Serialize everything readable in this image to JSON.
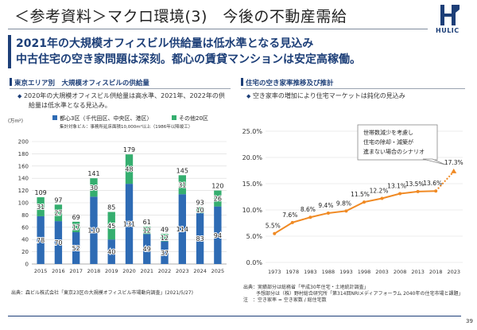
{
  "header": {
    "title": "＜参考資料＞マクロ環境(3)　今後の不動産需給",
    "logo_text": "HULIC",
    "headline_1": "2021年の大規模オフィスビル供給量は低水準となる見込み",
    "headline_2": "中古住宅の空き家問題は深刻。都心の賃貸マンションは安定高稼働。"
  },
  "left_panel": {
    "title": "東京エリア別　大規模オフィスビルの供給量",
    "bullet_1": "2020年の大規模オフィスビル供給量は高水準、2021年、2022年の供",
    "bullet_2": "給量は低水準となる見込み。",
    "unit": "(万m²)",
    "legend_1": "都心3区（千代田区、中央区、港区）",
    "legend_2": "その他20区",
    "legend_note": "集計対象ビル：事務所延床面積10,000m²以上（1986年以降竣工）",
    "source": "出典：森ビル株式会社「東京23区の大規模オフィスビル市場動向調査」(2021/5/27)"
  },
  "right_panel": {
    "title": "住宅の空き家率推移及び推計",
    "bullet_1": "空き家率の増加により住宅マーケットは鈍化の見込み",
    "callout_1": "世帯数減少を考慮し",
    "callout_2": "住宅の除却・減築が",
    "callout_3": "進まない場合のシナリオ",
    "source_1": "出典：実績部分は総務省「平成30年住宅・土地統計調査」",
    "source_2": "予想部分は（株）野村総合研究所「第314回NRIメディアフォーラム 2040年の住宅市場と課題」",
    "source_3": "注　：空き家率 = 空き家数 / 総住宅数"
  },
  "page_number": "39",
  "chart_data": [
    {
      "type": "bar",
      "stacked": true,
      "categories": [
        "2015",
        "2016",
        "2017",
        "2018",
        "2019",
        "2020",
        "2021",
        "2022",
        "2023",
        "2024",
        "2025"
      ],
      "series": [
        {
          "name": "都心3区（千代田区、中央区、港区）",
          "color": "#2e6bb4",
          "values": [
            78,
            70,
            52,
            110,
            40,
            131,
            49,
            37,
            114,
            83,
            94
          ]
        },
        {
          "name": "その他20区",
          "color": "#35ae6f",
          "values": [
            31,
            27,
            17,
            30,
            45,
            48,
            12,
            12,
            31,
            10,
            26
          ]
        }
      ],
      "totals": [
        109,
        97,
        69,
        141,
        85,
        179,
        61,
        49,
        145,
        93,
        120
      ],
      "ylim": [
        0,
        200
      ],
      "yticks": [
        0,
        20,
        40,
        60,
        80,
        100,
        120,
        140,
        160,
        180,
        200
      ],
      "ylabel": "(万m²)",
      "grid": true
    },
    {
      "type": "line",
      "x": [
        "1973",
        "1978",
        "1983",
        "1988",
        "1993",
        "1998",
        "2003",
        "2008",
        "2013",
        "2018",
        "2023"
      ],
      "values": [
        5.5,
        7.6,
        8.6,
        9.4,
        9.8,
        11.5,
        12.2,
        13.1,
        13.5,
        13.6,
        17.3
      ],
      "labels": [
        "5.5%",
        "7.6%",
        "8.6%",
        "9.4%",
        "9.8%",
        "11.5%",
        "12.2%",
        "13.1%",
        "13.5%",
        "13.6%",
        "17.3%"
      ],
      "color": "#f08a24",
      "projected_from_index": 9,
      "ylim": [
        0,
        25
      ],
      "yticks": [
        "0.0%",
        "5.0%",
        "10.0%",
        "15.0%",
        "20.0%",
        "25.0%"
      ],
      "grid": true
    }
  ]
}
